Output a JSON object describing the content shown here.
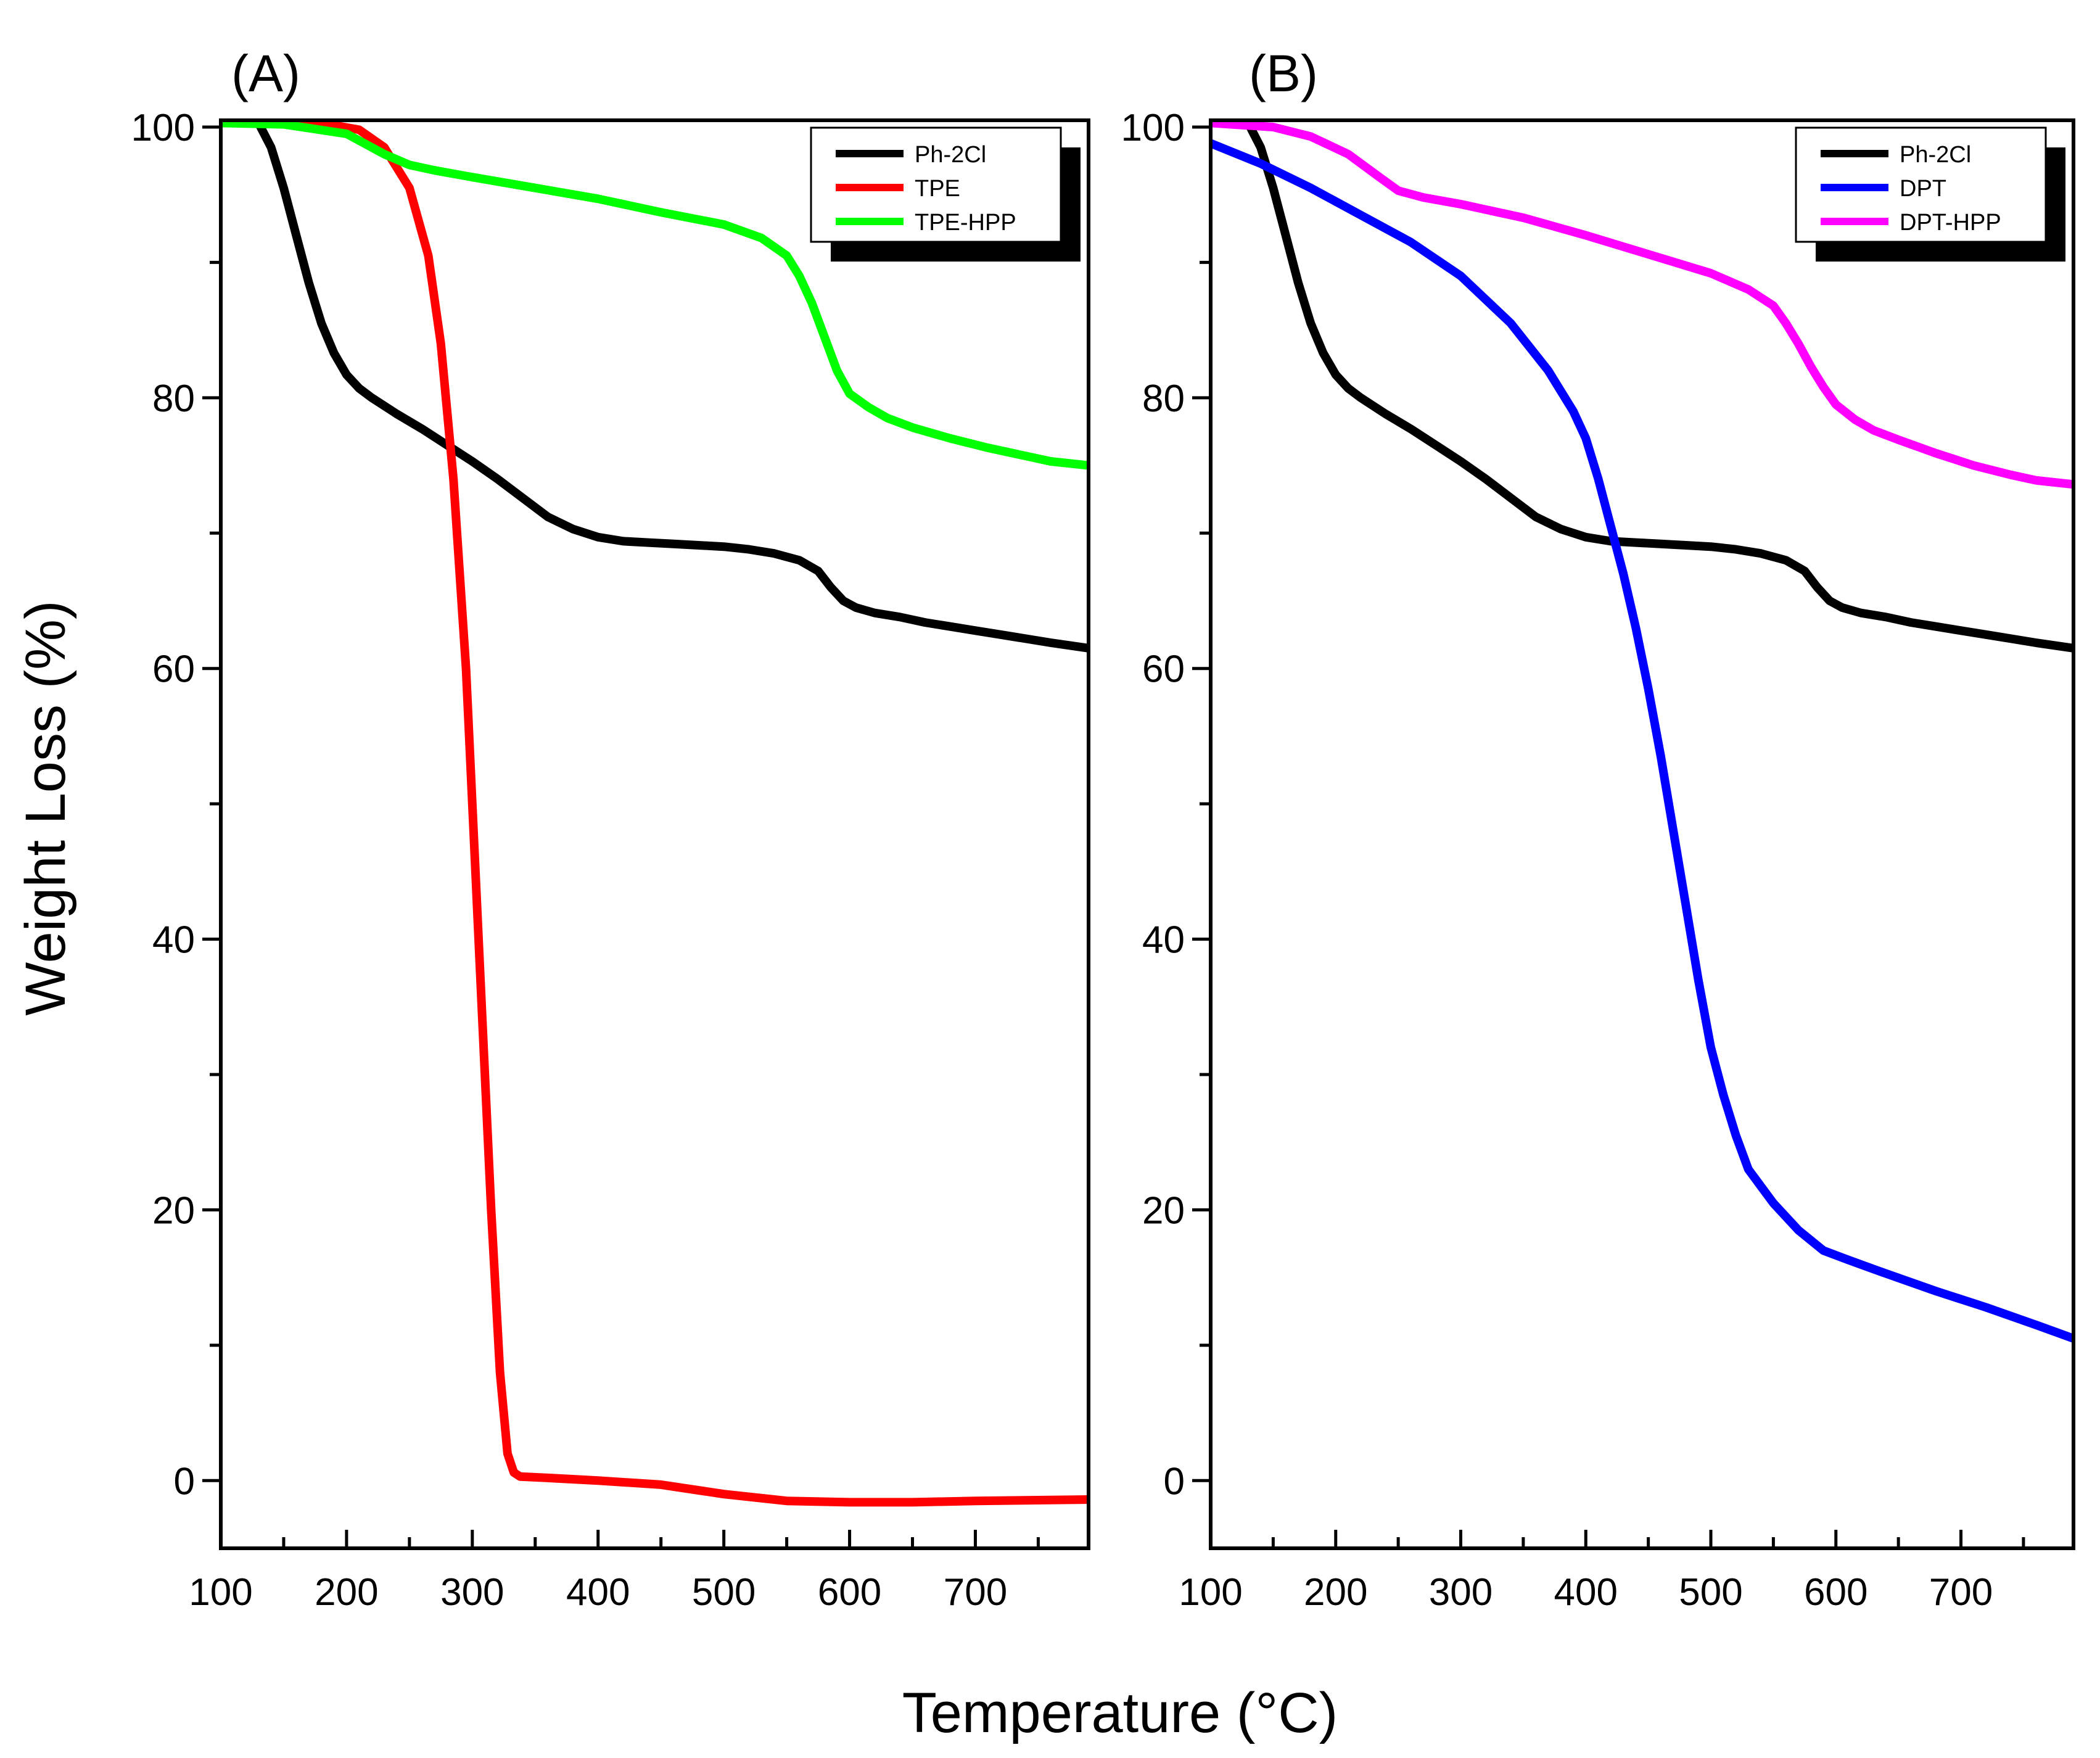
{
  "colors": {
    "Ph-2Cl": "#000000",
    "TPE": "#ff0000",
    "TPE-HPP": "#00ff00",
    "DPT": "#0000ff",
    "DPT-HPP": "#ff00ff"
  },
  "shared": {
    "xlabel": "Temperature (°C)",
    "ylabel": "Weight Loss (%)"
  },
  "chart_data": [
    {
      "type": "line",
      "panel_label": "(A)",
      "xlim": [
        100,
        790
      ],
      "ylim": [
        -5,
        100.5
      ],
      "x_ticks": [
        100,
        200,
        300,
        400,
        500,
        600,
        700
      ],
      "y_ticks": [
        0,
        20,
        40,
        60,
        80,
        100
      ],
      "legend_position": "top-right",
      "series": [
        {
          "name": "Ph-2Cl",
          "x": [
            100,
            130,
            140,
            150,
            160,
            170,
            180,
            190,
            200,
            210,
            220,
            240,
            260,
            280,
            300,
            320,
            340,
            360,
            380,
            400,
            420,
            440,
            460,
            480,
            500,
            520,
            540,
            560,
            575,
            585,
            595,
            605,
            620,
            640,
            660,
            680,
            700,
            720,
            740,
            760,
            790
          ],
          "y": [
            100.3,
            100.3,
            98.5,
            95.5,
            92,
            88.5,
            85.5,
            83.3,
            81.7,
            80.7,
            80,
            78.8,
            77.7,
            76.5,
            75.3,
            74,
            72.6,
            71.2,
            70.3,
            69.7,
            69.4,
            69.3,
            69.2,
            69.1,
            69,
            68.8,
            68.5,
            68,
            67.2,
            66,
            65,
            64.5,
            64.1,
            63.8,
            63.4,
            63.1,
            62.8,
            62.5,
            62.2,
            61.9,
            61.5
          ]
        },
        {
          "name": "TPE",
          "x": [
            100,
            180,
            210,
            230,
            250,
            265,
            275,
            285,
            295,
            305,
            315,
            322,
            328,
            333,
            338,
            360,
            400,
            450,
            500,
            550,
            600,
            650,
            700,
            790
          ],
          "y": [
            100.3,
            100.3,
            99.8,
            98.5,
            95.5,
            90.5,
            84,
            74,
            60,
            40,
            20,
            8,
            2,
            0.6,
            0.3,
            0.2,
            0,
            -0.3,
            -1,
            -1.5,
            -1.6,
            -1.6,
            -1.5,
            -1.4
          ]
        },
        {
          "name": "TPE-HPP",
          "x": [
            100,
            150,
            200,
            230,
            250,
            270,
            300,
            350,
            400,
            450,
            500,
            530,
            550,
            560,
            570,
            580,
            590,
            600,
            615,
            630,
            650,
            680,
            710,
            740,
            760,
            790
          ],
          "y": [
            100.3,
            100.2,
            99.5,
            98,
            97.2,
            96.8,
            96.3,
            95.5,
            94.7,
            93.7,
            92.8,
            91.8,
            90.5,
            89,
            87,
            84.5,
            82,
            80.3,
            79.3,
            78.5,
            77.8,
            77,
            76.3,
            75.7,
            75.3,
            75
          ]
        }
      ]
    },
    {
      "type": "line",
      "panel_label": "(B)",
      "xlim": [
        100,
        790
      ],
      "ylim": [
        -5,
        100.5
      ],
      "x_ticks": [
        100,
        200,
        300,
        400,
        500,
        600,
        700
      ],
      "y_ticks": [
        0,
        20,
        40,
        60,
        80,
        100
      ],
      "legend_position": "top-right",
      "series": [
        {
          "name": "Ph-2Cl",
          "x": [
            100,
            130,
            140,
            150,
            160,
            170,
            180,
            190,
            200,
            210,
            220,
            240,
            260,
            280,
            300,
            320,
            340,
            360,
            380,
            400,
            420,
            440,
            460,
            480,
            500,
            520,
            540,
            560,
            575,
            585,
            595,
            605,
            620,
            640,
            660,
            680,
            700,
            720,
            740,
            760,
            790
          ],
          "y": [
            100.3,
            100.3,
            98.5,
            95.5,
            92,
            88.5,
            85.5,
            83.3,
            81.7,
            80.7,
            80,
            78.8,
            77.7,
            76.5,
            75.3,
            74,
            72.6,
            71.2,
            70.3,
            69.7,
            69.4,
            69.3,
            69.2,
            69.1,
            69,
            68.8,
            68.5,
            68,
            67.2,
            66,
            65,
            64.5,
            64.1,
            63.8,
            63.4,
            63.1,
            62.8,
            62.5,
            62.2,
            61.9,
            61.5
          ]
        },
        {
          "name": "DPT",
          "x": [
            100,
            140,
            180,
            220,
            260,
            300,
            340,
            370,
            390,
            400,
            410,
            420,
            430,
            440,
            450,
            460,
            470,
            480,
            490,
            500,
            510,
            520,
            530,
            550,
            570,
            590,
            610,
            640,
            680,
            720,
            760,
            790
          ],
          "y": [
            98.8,
            97.3,
            95.5,
            93.5,
            91.5,
            89,
            85.5,
            82,
            79,
            77,
            74,
            70.5,
            67,
            63,
            58.5,
            53.5,
            48,
            42.5,
            37,
            32,
            28.5,
            25.5,
            23,
            20.5,
            18.5,
            17,
            16.3,
            15.3,
            14,
            12.8,
            11.5,
            10.5
          ]
        },
        {
          "name": "DPT-HPP",
          "x": [
            100,
            150,
            180,
            210,
            235,
            250,
            270,
            300,
            350,
            400,
            450,
            500,
            530,
            550,
            560,
            570,
            580,
            590,
            600,
            615,
            630,
            650,
            680,
            710,
            740,
            760,
            790
          ],
          "y": [
            100.3,
            100,
            99.3,
            98,
            96.3,
            95.3,
            94.8,
            94.3,
            93.3,
            92,
            90.6,
            89.2,
            88,
            86.8,
            85.5,
            84,
            82.3,
            80.8,
            79.5,
            78.4,
            77.6,
            76.9,
            75.9,
            75,
            74.3,
            73.9,
            73.6
          ]
        }
      ]
    }
  ]
}
